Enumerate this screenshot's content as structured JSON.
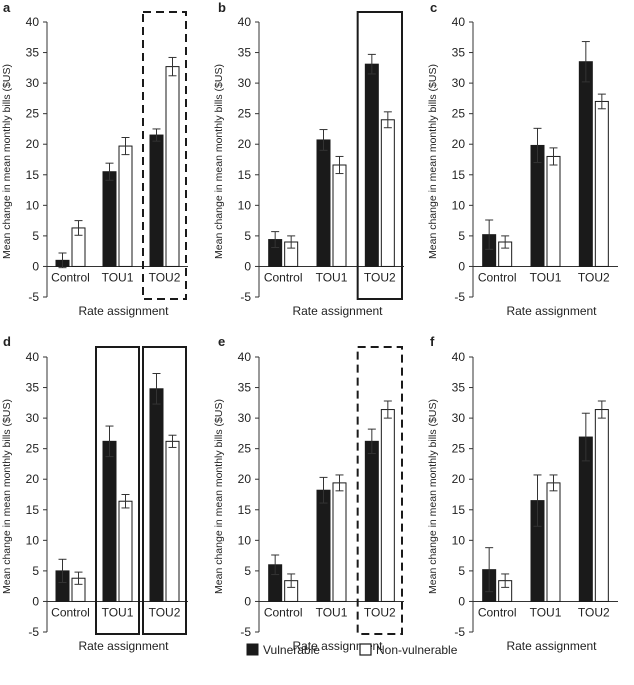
{
  "figure": {
    "legend": [
      {
        "label": "Vulnerable",
        "color": "#1a1a1a"
      },
      {
        "label": "Non-vulnerable",
        "color": "#ffffff"
      }
    ]
  },
  "chart_data": [
    {
      "panel": "a",
      "type": "bar",
      "categories": [
        "Control",
        "TOU1",
        "TOU2"
      ],
      "series": [
        {
          "name": "Vulnerable",
          "values": [
            1.0,
            15.5,
            21.5
          ],
          "err": [
            1.2,
            1.4,
            1.0
          ]
        },
        {
          "name": "Non-vulnerable",
          "values": [
            6.3,
            19.7,
            32.7
          ],
          "err": [
            1.2,
            1.4,
            1.5
          ]
        }
      ],
      "xlabel": "Rate assignment",
      "ylabel": "Mean change in mean monthly bills ($US)",
      "ylim": [
        -5,
        40
      ],
      "yticks": [
        -5,
        0,
        5,
        10,
        15,
        20,
        25,
        30,
        35,
        40
      ],
      "highlight": [
        {
          "category": "TOU2",
          "style": "dashed"
        }
      ]
    },
    {
      "panel": "b",
      "type": "bar",
      "categories": [
        "Control",
        "TOU1",
        "TOU2"
      ],
      "series": [
        {
          "name": "Vulnerable",
          "values": [
            4.4,
            20.7,
            33.1
          ],
          "err": [
            1.3,
            1.7,
            1.6
          ]
        },
        {
          "name": "Non-vulnerable",
          "values": [
            4.0,
            16.6,
            24.0
          ],
          "err": [
            1.0,
            1.4,
            1.3
          ]
        }
      ],
      "xlabel": "Rate assignment",
      "ylabel": "Mean change in mean monthly bills ($US)",
      "ylim": [
        -5,
        40
      ],
      "yticks": [
        -5,
        0,
        5,
        10,
        15,
        20,
        25,
        30,
        35,
        40
      ],
      "highlight": [
        {
          "category": "TOU2",
          "style": "solid"
        }
      ]
    },
    {
      "panel": "c",
      "type": "bar",
      "categories": [
        "Control",
        "TOU1",
        "TOU2"
      ],
      "series": [
        {
          "name": "Vulnerable",
          "values": [
            5.2,
            19.8,
            33.5
          ],
          "err": [
            2.4,
            2.8,
            3.3
          ]
        },
        {
          "name": "Non-vulnerable",
          "values": [
            4.0,
            18.0,
            27.0
          ],
          "err": [
            1.0,
            1.4,
            1.2
          ]
        }
      ],
      "xlabel": "Rate assignment",
      "ylabel": "Mean change in mean monthly bills ($US)",
      "ylim": [
        -5,
        40
      ],
      "yticks": [
        -5,
        0,
        5,
        10,
        15,
        20,
        25,
        30,
        35,
        40
      ],
      "highlight": []
    },
    {
      "panel": "d",
      "type": "bar",
      "categories": [
        "Control",
        "TOU1",
        "TOU2"
      ],
      "series": [
        {
          "name": "Vulnerable",
          "values": [
            5.0,
            26.2,
            34.8
          ],
          "err": [
            1.9,
            2.5,
            2.5
          ]
        },
        {
          "name": "Non-vulnerable",
          "values": [
            3.8,
            16.4,
            26.2
          ],
          "err": [
            1.0,
            1.1,
            1.0
          ]
        }
      ],
      "xlabel": "Rate assignment",
      "ylabel": "Mean change in mean monthly bills ($US)",
      "ylim": [
        -5,
        40
      ],
      "yticks": [
        -5,
        0,
        5,
        10,
        15,
        20,
        25,
        30,
        35,
        40
      ],
      "highlight": [
        {
          "category": "TOU1",
          "style": "solid"
        },
        {
          "category": "TOU2",
          "style": "solid"
        }
      ]
    },
    {
      "panel": "e",
      "type": "bar",
      "categories": [
        "Control",
        "TOU1",
        "TOU2"
      ],
      "series": [
        {
          "name": "Vulnerable",
          "values": [
            6.0,
            18.2,
            26.2
          ],
          "err": [
            1.6,
            2.1,
            2.0
          ]
        },
        {
          "name": "Non-vulnerable",
          "values": [
            3.4,
            19.4,
            31.4
          ],
          "err": [
            1.1,
            1.3,
            1.4
          ]
        }
      ],
      "xlabel": "Rate assignment",
      "ylabel": "Mean change in mean monthly bills ($US)",
      "ylim": [
        -5,
        40
      ],
      "yticks": [
        -5,
        0,
        5,
        10,
        15,
        20,
        25,
        30,
        35,
        40
      ],
      "highlight": [
        {
          "category": "TOU2",
          "style": "dashed"
        }
      ]
    },
    {
      "panel": "f",
      "type": "bar",
      "categories": [
        "Control",
        "TOU1",
        "TOU2"
      ],
      "series": [
        {
          "name": "Vulnerable",
          "values": [
            5.2,
            16.5,
            26.9
          ],
          "err": [
            3.6,
            4.2,
            3.9
          ]
        },
        {
          "name": "Non-vulnerable",
          "values": [
            3.4,
            19.4,
            31.4
          ],
          "err": [
            1.1,
            1.3,
            1.4
          ]
        }
      ],
      "xlabel": "Rate assignment",
      "ylabel": "Mean change in mean monthly bills ($US)",
      "ylim": [
        -5,
        40
      ],
      "yticks": [
        -5,
        0,
        5,
        10,
        15,
        20,
        25,
        30,
        35,
        40
      ],
      "highlight": []
    }
  ]
}
